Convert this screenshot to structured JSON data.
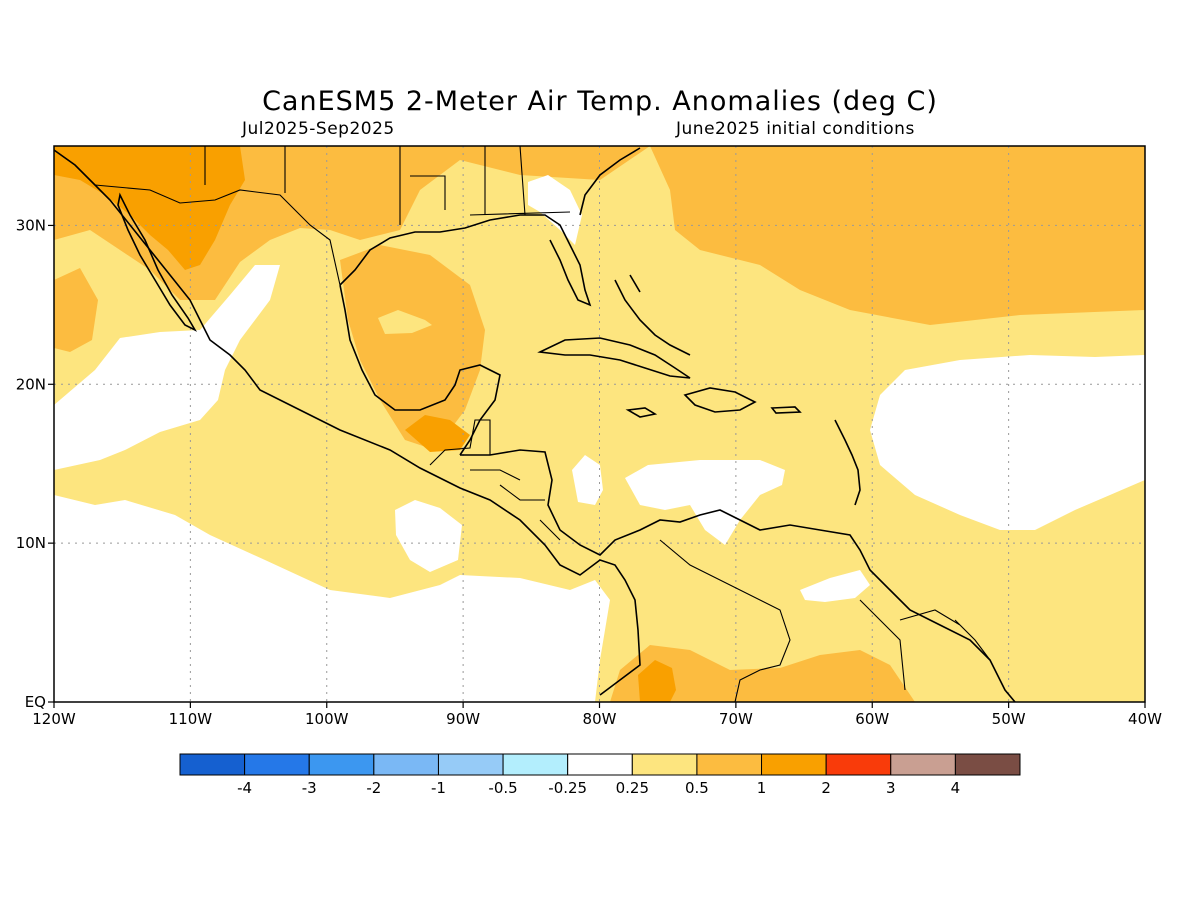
{
  "title": "CanESM5 2-Meter Air Temp. Anomalies (deg C)",
  "subtitle_left": "Jul2025-Sep2025",
  "subtitle_right": "June2025 initial conditions",
  "map": {
    "lon_range": [
      -120,
      -40
    ],
    "lat_range": [
      0,
      35
    ],
    "lon_ticks": [
      {
        "value": -120,
        "label": "120W"
      },
      {
        "value": -110,
        "label": "110W"
      },
      {
        "value": -100,
        "label": "100W"
      },
      {
        "value": -90,
        "label": "90W"
      },
      {
        "value": -80,
        "label": "80W"
      },
      {
        "value": -70,
        "label": "70W"
      },
      {
        "value": -60,
        "label": "60W"
      },
      {
        "value": -50,
        "label": "50W"
      },
      {
        "value": -40,
        "label": "40W"
      }
    ],
    "lat_ticks": [
      {
        "value": 0,
        "label": "EQ"
      },
      {
        "value": 10,
        "label": "10N"
      },
      {
        "value": 20,
        "label": "20N"
      },
      {
        "value": 30,
        "label": "30N"
      }
    ],
    "gridlines": true
  },
  "colorbar": {
    "colors": [
      "#1560d0",
      "#2578e8",
      "#3c97f0",
      "#7ab8f5",
      "#96cbf7",
      "#b3eefd",
      "#ffffff",
      "#fde57f",
      "#fcbc40",
      "#f9a000",
      "#f93b0a",
      "#c99f92",
      "#7a4d44"
    ],
    "labels": [
      "-4",
      "-3",
      "-2",
      "-1",
      "-0.5",
      "-0.25",
      "0.25",
      "0.5",
      "1",
      "2",
      "3",
      "4"
    ]
  },
  "palette": {
    "white": "#ffffff",
    "light_yellow": "#fde57f",
    "light_orange": "#fcbc40",
    "orange": "#f9a000"
  }
}
